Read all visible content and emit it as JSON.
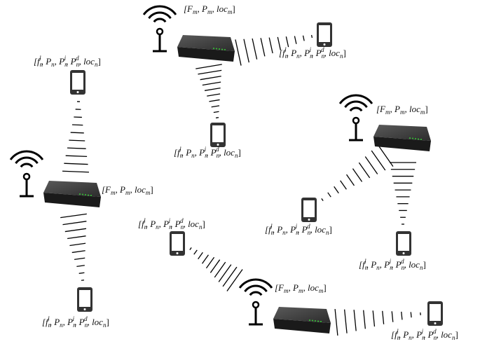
{
  "servers": [
    {
      "label": "[F_m, P_m, loc_m]"
    },
    {
      "label": "[F_m, P_m, loc_m]"
    },
    {
      "label": "[F_m, P_m, loc_m]"
    },
    {
      "label": "[F_m, P_m, loc_m]"
    }
  ],
  "devices": [
    {
      "label": "[f_n^l, P_n, P_n^i, P_n^d, loc_n]"
    },
    {
      "label": "[f_n^l, P_n, P_n^i, P_n^d, loc_n]"
    },
    {
      "label": "[f_n^l, P_n, P_n^i, P_n^d, loc_n]"
    },
    {
      "label": "[f_n^l, P_n, P_n^i, P_n^d, loc_n]"
    },
    {
      "label": "[f_n^l, P_n, P_n^i, P_n^d, loc_n]"
    },
    {
      "label": "[f_n^l, P_n, P_n^i, P_n^d, loc_n]"
    },
    {
      "label": "[f_n^l, P_n, P_n^i, P_n^d, loc_n]"
    },
    {
      "label": "[f_n^l, P_n, P_n^i, P_n^d, loc_n]"
    }
  ]
}
